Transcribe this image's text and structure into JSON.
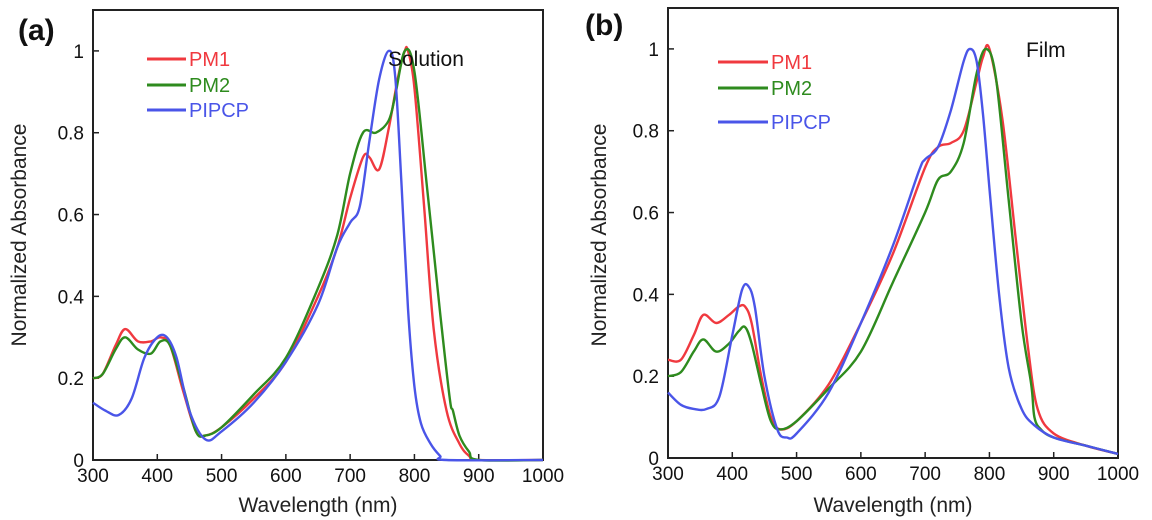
{
  "colors": {
    "PM1": "#f0393f",
    "PM2": "#2e8b1e",
    "PIPCP": "#4a55e8",
    "axis": "#222222"
  },
  "chart_data": [
    {
      "type": "line",
      "panel_label": "(a)",
      "condition_label": "Solution",
      "xlabel": "Wavelength (nm)",
      "ylabel": "Normalized Absorbance",
      "xlim": [
        300,
        1000
      ],
      "ylim": [
        0,
        1.1
      ],
      "xticks": [
        "300",
        "400",
        "500",
        "600",
        "700",
        "800",
        "900",
        "1000"
      ],
      "yticks": [
        "0",
        "0.2",
        "0.4",
        "0.6",
        "0.8",
        "1"
      ],
      "legend_position": "top-left",
      "grid": false,
      "series": [
        {
          "name": "PM1",
          "color_key": "PM1",
          "x": [
            300,
            315,
            335,
            350,
            370,
            390,
            405,
            420,
            440,
            460,
            475,
            500,
            550,
            600,
            650,
            680,
            700,
            720,
            730,
            745,
            760,
            775,
            785,
            790,
            800,
            815,
            830,
            850,
            870,
            885,
            900,
            1000
          ],
          "y": [
            0.2,
            0.21,
            0.28,
            0.32,
            0.29,
            0.29,
            0.3,
            0.28,
            0.17,
            0.07,
            0.06,
            0.08,
            0.15,
            0.24,
            0.4,
            0.52,
            0.64,
            0.74,
            0.74,
            0.71,
            0.81,
            0.94,
            1.0,
            1.0,
            0.91,
            0.62,
            0.32,
            0.12,
            0.04,
            0.01,
            0.0,
            0.0
          ]
        },
        {
          "name": "PM2",
          "color_key": "PM2",
          "x": [
            300,
            315,
            335,
            350,
            370,
            390,
            405,
            420,
            440,
            460,
            475,
            500,
            550,
            600,
            650,
            680,
            700,
            720,
            740,
            760,
            770,
            785,
            800,
            820,
            840,
            855,
            860,
            870,
            885,
            900,
            1000
          ],
          "y": [
            0.2,
            0.21,
            0.27,
            0.3,
            0.27,
            0.26,
            0.29,
            0.28,
            0.18,
            0.07,
            0.06,
            0.08,
            0.16,
            0.25,
            0.42,
            0.55,
            0.7,
            0.8,
            0.8,
            0.83,
            0.89,
            1.0,
            0.95,
            0.66,
            0.36,
            0.15,
            0.12,
            0.06,
            0.02,
            0.0,
            0.0
          ]
        },
        {
          "name": "PIPCP",
          "color_key": "PIPCP",
          "x": [
            300,
            320,
            340,
            360,
            380,
            400,
            415,
            430,
            450,
            475,
            500,
            550,
            600,
            650,
            680,
            700,
            715,
            730,
            745,
            760,
            770,
            780,
            790,
            800,
            810,
            825,
            840,
            850,
            1000
          ],
          "y": [
            0.14,
            0.12,
            0.11,
            0.15,
            0.25,
            0.3,
            0.3,
            0.25,
            0.12,
            0.05,
            0.07,
            0.14,
            0.24,
            0.38,
            0.52,
            0.58,
            0.62,
            0.78,
            0.93,
            1.0,
            0.94,
            0.67,
            0.37,
            0.18,
            0.09,
            0.04,
            0.01,
            0.0,
            0.0
          ]
        }
      ]
    },
    {
      "type": "line",
      "panel_label": "(b)",
      "condition_label": "Film",
      "xlabel": "Wavelength (nm)",
      "ylabel": "Normalized Absorbance",
      "xlim": [
        300,
        1000
      ],
      "ylim": [
        0,
        1.1
      ],
      "xticks": [
        "300",
        "400",
        "500",
        "600",
        "700",
        "800",
        "900",
        "1000"
      ],
      "yticks": [
        "0",
        "0.2",
        "0.4",
        "0.6",
        "0.8",
        "1"
      ],
      "legend_position": "top-left",
      "grid": false,
      "series": [
        {
          "name": "PM1",
          "color_key": "PM1",
          "x": [
            300,
            320,
            340,
            355,
            375,
            395,
            410,
            420,
            430,
            445,
            460,
            475,
            500,
            550,
            600,
            650,
            700,
            720,
            740,
            760,
            780,
            790,
            800,
            820,
            840,
            860,
            875,
            900,
            950,
            1000
          ],
          "y": [
            0.24,
            0.24,
            0.3,
            0.35,
            0.33,
            0.35,
            0.37,
            0.37,
            0.33,
            0.2,
            0.1,
            0.07,
            0.09,
            0.18,
            0.33,
            0.5,
            0.71,
            0.76,
            0.77,
            0.8,
            0.92,
            0.98,
            1.0,
            0.83,
            0.55,
            0.27,
            0.12,
            0.06,
            0.03,
            0.01
          ]
        },
        {
          "name": "PM2",
          "color_key": "PM2",
          "x": [
            300,
            320,
            340,
            355,
            375,
            395,
            410,
            420,
            430,
            445,
            460,
            475,
            500,
            550,
            600,
            650,
            700,
            720,
            740,
            760,
            780,
            795,
            810,
            830,
            850,
            865,
            870,
            880,
            900,
            950,
            1000
          ],
          "y": [
            0.2,
            0.21,
            0.26,
            0.29,
            0.26,
            0.28,
            0.31,
            0.32,
            0.28,
            0.18,
            0.09,
            0.07,
            0.09,
            0.17,
            0.26,
            0.43,
            0.6,
            0.68,
            0.7,
            0.77,
            0.94,
            1.0,
            0.93,
            0.63,
            0.33,
            0.18,
            0.1,
            0.07,
            0.05,
            0.03,
            0.01
          ]
        },
        {
          "name": "PIPCP",
          "color_key": "PIPCP",
          "x": [
            300,
            320,
            340,
            360,
            380,
            400,
            415,
            425,
            435,
            450,
            470,
            485,
            500,
            550,
            600,
            650,
            690,
            700,
            720,
            740,
            760,
            770,
            780,
            790,
            800,
            815,
            830,
            850,
            870,
            900,
            950,
            1000
          ],
          "y": [
            0.16,
            0.13,
            0.12,
            0.12,
            0.15,
            0.3,
            0.41,
            0.42,
            0.37,
            0.2,
            0.07,
            0.05,
            0.06,
            0.16,
            0.33,
            0.52,
            0.7,
            0.73,
            0.76,
            0.85,
            0.97,
            1.0,
            0.97,
            0.84,
            0.66,
            0.4,
            0.22,
            0.12,
            0.08,
            0.05,
            0.03,
            0.01
          ]
        }
      ]
    }
  ]
}
